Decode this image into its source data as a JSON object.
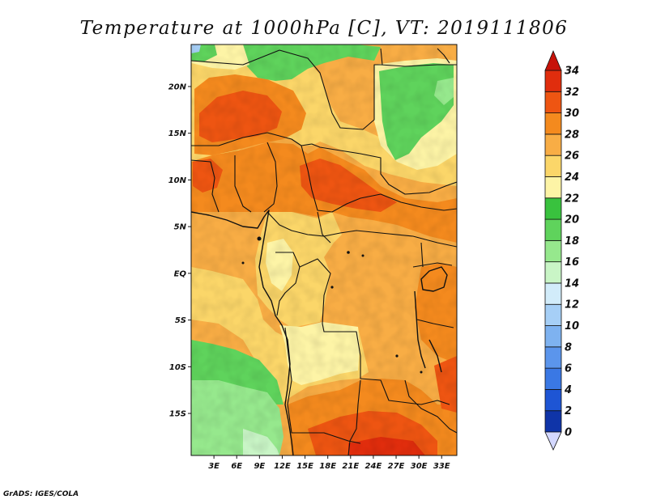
{
  "title": "Temperature at 1000hPa [C], VT: 2019111806",
  "credit": "GrADS: IGES/COLA",
  "map": {
    "lon_range": [
      0,
      35
    ],
    "lat_range": [
      -19.5,
      24.5
    ],
    "lon_ticks": [
      {
        "value": 3,
        "label": "3E"
      },
      {
        "value": 6,
        "label": "6E"
      },
      {
        "value": 9,
        "label": "9E"
      },
      {
        "value": 12,
        "label": "12E"
      },
      {
        "value": 15,
        "label": "15E"
      },
      {
        "value": 18,
        "label": "18E"
      },
      {
        "value": 21,
        "label": "21E"
      },
      {
        "value": 24,
        "label": "24E"
      },
      {
        "value": 27,
        "label": "27E"
      },
      {
        "value": 30,
        "label": "30E"
      },
      {
        "value": 33,
        "label": "33E"
      }
    ],
    "lat_ticks": [
      {
        "value": 20,
        "label": "20N"
      },
      {
        "value": 15,
        "label": "15N"
      },
      {
        "value": 10,
        "label": "10N"
      },
      {
        "value": 5,
        "label": "5N"
      },
      {
        "value": 0,
        "label": "EQ"
      },
      {
        "value": -5,
        "label": "5S"
      },
      {
        "value": -10,
        "label": "10S"
      },
      {
        "value": -15,
        "label": "15S"
      }
    ]
  },
  "colorbar": {
    "levels": [
      "0",
      "2",
      "4",
      "6",
      "8",
      "10",
      "12",
      "14",
      "16",
      "18",
      "20",
      "22",
      "24",
      "26",
      "28",
      "30",
      "32",
      "34"
    ],
    "colors": [
      "#0b1a6e",
      "#0f34a8",
      "#1e55d4",
      "#3a78e4",
      "#5b95ec",
      "#7eb2f0",
      "#a6cff6",
      "#d2ecfa",
      "#c9f5c6",
      "#96e88d",
      "#5fd35c",
      "#39c23e",
      "#fdf4a6",
      "#fbd669",
      "#f8ad45",
      "#f48a1e",
      "#ee5512",
      "#e02d0d",
      "#c71209"
    ],
    "under_color": "#d4d8ff",
    "over_color": "#c71209"
  }
}
